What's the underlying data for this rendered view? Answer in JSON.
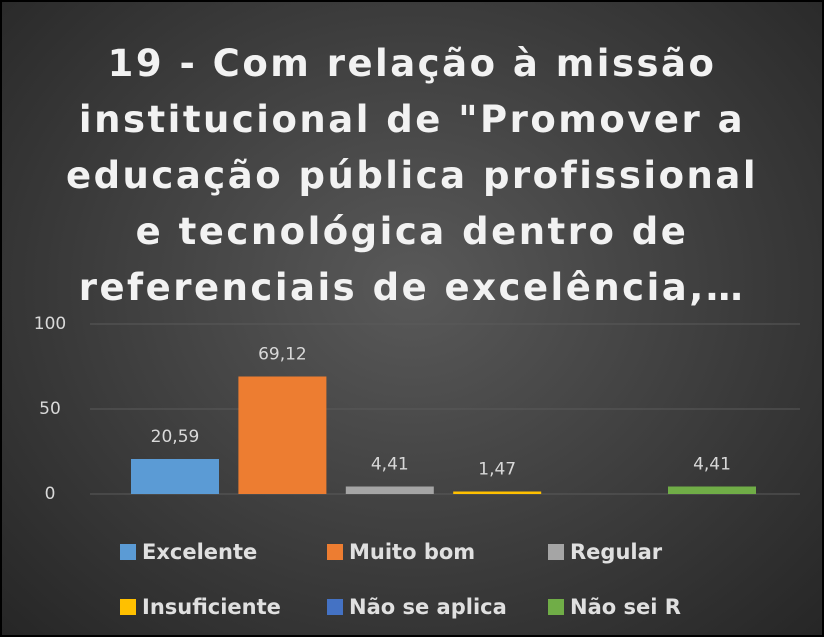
{
  "chart_data": {
    "type": "bar",
    "title": "19 - Com relação à missão institucional de \"Promover a educação pública profissional e tecnológica dentro de referenciais de excelência,…",
    "series": [
      {
        "name": "Excelente",
        "color": "#5b9bd5",
        "values": [
          20.59
        ],
        "value_labels": [
          "20,59"
        ]
      },
      {
        "name": "Muito bom",
        "color": "#ed7d31",
        "values": [
          69.12
        ],
        "value_labels": [
          "69,12"
        ]
      },
      {
        "name": "Regular",
        "color": "#a5a5a5",
        "values": [
          4.41
        ],
        "value_labels": [
          "4,41"
        ]
      },
      {
        "name": "Insuficiente",
        "color": "#ffc000",
        "values": [
          1.47
        ],
        "value_labels": [
          "1,47"
        ]
      },
      {
        "name": "Não se aplica",
        "color": "#4472c4",
        "values": [
          null
        ],
        "value_labels": [
          null
        ]
      },
      {
        "name": "Não sei R",
        "color": "#70ad47",
        "values": [
          4.41
        ],
        "value_labels": [
          "4,41"
        ]
      }
    ],
    "ylim": [
      0,
      100
    ],
    "yticks": [
      0,
      50,
      100
    ],
    "grid": true
  }
}
